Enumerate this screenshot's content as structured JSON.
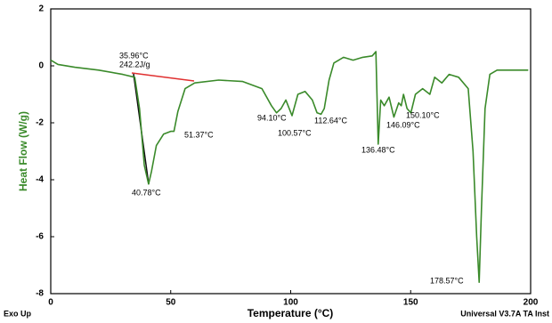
{
  "chart_data": {
    "type": "line",
    "xlabel": "Temperature (°C)",
    "ylabel": "Heat Flow (W/g)",
    "corner_left": "Exo Up",
    "corner_right": "Universal V3.7A TA Inst",
    "xlim": [
      0,
      200
    ],
    "xticks": [
      0,
      50,
      100,
      150,
      200
    ],
    "ylim": [
      -8,
      2
    ],
    "yticks": [
      2,
      0,
      -2,
      -4,
      -6,
      -8
    ],
    "grid": false,
    "series": [
      {
        "color": "#3a8a2a",
        "x": [
          0,
          3,
          10,
          20,
          30,
          35,
          37,
          39,
          40.78,
          42,
          44,
          47,
          50,
          51.37,
          53,
          56,
          60,
          70,
          80,
          88,
          92,
          94.1,
          96,
          98,
          100.57,
          103,
          106,
          109,
          111,
          112.64,
          114,
          116,
          118,
          122,
          126,
          130,
          134,
          135.5,
          136.48,
          137.5,
          139,
          141,
          143,
          145,
          146.09,
          147,
          148.5,
          150.1,
          152,
          155,
          158,
          160,
          163,
          166,
          170,
          174,
          176,
          177.5,
          178.57,
          179.5,
          181,
          183,
          186,
          190,
          195,
          199
        ],
        "values": [
          0.2,
          0.05,
          -0.05,
          -0.15,
          -0.3,
          -0.4,
          -1.5,
          -3.5,
          -4.15,
          -3.7,
          -2.8,
          -2.4,
          -2.3,
          -2.3,
          -1.6,
          -0.8,
          -0.6,
          -0.5,
          -0.55,
          -0.8,
          -1.4,
          -1.65,
          -1.5,
          -1.2,
          -1.75,
          -1.0,
          -0.9,
          -1.2,
          -1.65,
          -1.7,
          -1.5,
          -0.5,
          0.1,
          0.3,
          0.2,
          0.3,
          0.35,
          0.5,
          -2.75,
          -1.2,
          -1.4,
          -1.1,
          -1.8,
          -1.3,
          -1.4,
          -1.0,
          -1.5,
          -1.65,
          -1.0,
          -0.8,
          -1.0,
          -0.4,
          -0.6,
          -0.3,
          -0.4,
          -0.8,
          -3,
          -6,
          -7.6,
          -5,
          -1.5,
          -0.3,
          -0.15,
          -0.15,
          -0.15,
          -0.15
        ]
      }
    ],
    "annotations": [
      "35.96°C",
      "242.2J/g",
      "40.78°C",
      "51.37°C",
      "94.10°C",
      "100.57°C",
      "112.64°C",
      "136.48°C",
      "146.09°C",
      "150.10°C",
      "178.57°C"
    ]
  }
}
